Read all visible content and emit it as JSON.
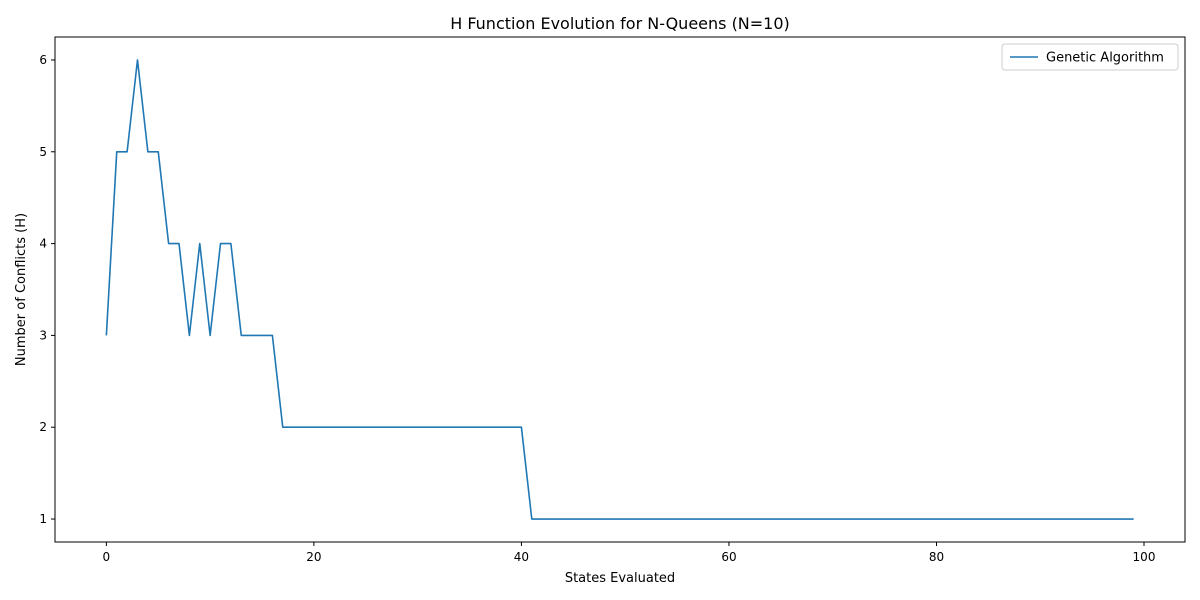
{
  "chart_data": {
    "type": "line",
    "title": "H Function Evolution for N-Queens (N=10)",
    "xlabel": "States Evaluated",
    "ylabel": "Number of Conflicts (H)",
    "xlim": [
      -4.95,
      103.95
    ],
    "ylim": [
      0.75,
      6.25
    ],
    "x_ticks": [
      0,
      20,
      40,
      60,
      80,
      100
    ],
    "y_ticks": [
      1,
      2,
      3,
      4,
      5,
      6
    ],
    "grid": false,
    "legend_position": "top-right",
    "series": [
      {
        "name": "Genetic Algorithm",
        "color": "#1f77b4",
        "x": [
          0,
          1,
          2,
          3,
          4,
          5,
          6,
          7,
          8,
          9,
          10,
          11,
          12,
          13,
          14,
          15,
          16,
          17,
          18,
          19,
          20,
          21,
          22,
          23,
          24,
          25,
          26,
          27,
          28,
          29,
          30,
          31,
          32,
          33,
          34,
          35,
          36,
          37,
          38,
          39,
          40,
          41,
          42,
          43,
          44,
          45,
          46,
          47,
          48,
          49,
          50,
          51,
          52,
          53,
          54,
          55,
          56,
          57,
          58,
          59,
          60,
          61,
          62,
          63,
          64,
          65,
          66,
          67,
          68,
          69,
          70,
          71,
          72,
          73,
          74,
          75,
          76,
          77,
          78,
          79,
          80,
          81,
          82,
          83,
          84,
          85,
          86,
          87,
          88,
          89,
          90,
          91,
          92,
          93,
          94,
          95,
          96,
          97,
          98,
          99
        ],
        "values": [
          3,
          5,
          5,
          6,
          5,
          5,
          4,
          4,
          3,
          4,
          3,
          4,
          4,
          3,
          3,
          3,
          3,
          2,
          2,
          2,
          2,
          2,
          2,
          2,
          2,
          2,
          2,
          2,
          2,
          2,
          2,
          2,
          2,
          2,
          2,
          2,
          2,
          2,
          2,
          2,
          2,
          1,
          1,
          1,
          1,
          1,
          1,
          1,
          1,
          1,
          1,
          1,
          1,
          1,
          1,
          1,
          1,
          1,
          1,
          1,
          1,
          1,
          1,
          1,
          1,
          1,
          1,
          1,
          1,
          1,
          1,
          1,
          1,
          1,
          1,
          1,
          1,
          1,
          1,
          1,
          1,
          1,
          1,
          1,
          1,
          1,
          1,
          1,
          1,
          1,
          1,
          1,
          1,
          1,
          1,
          1,
          1,
          1,
          1,
          1
        ]
      }
    ]
  }
}
